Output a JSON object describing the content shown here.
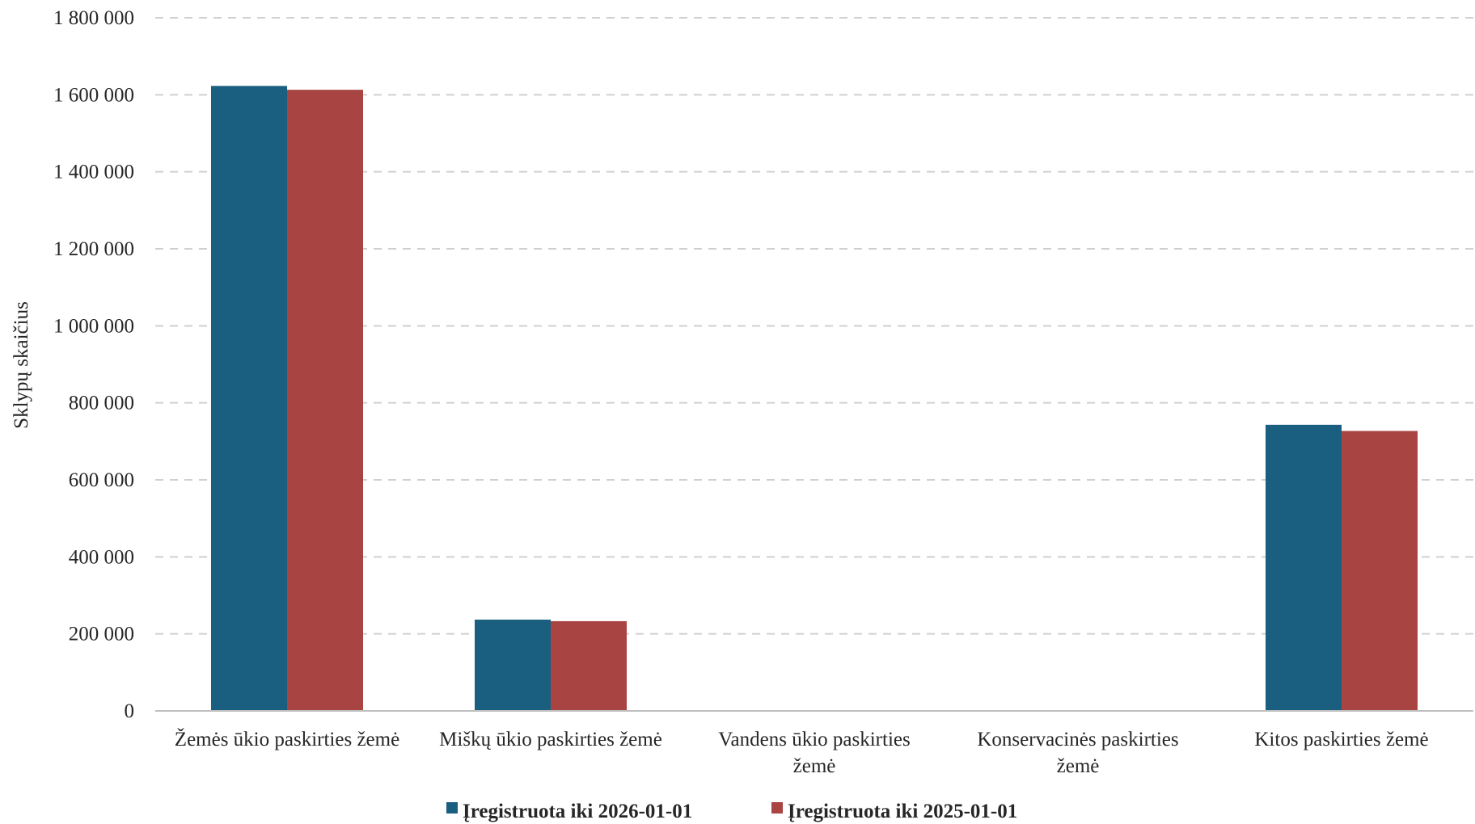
{
  "chart_data": {
    "type": "bar",
    "ylabel": "Sklypų skaičius",
    "xlabel": "",
    "ylim": [
      0,
      1800000
    ],
    "y_ticks": [
      0,
      200000,
      400000,
      600000,
      800000,
      1000000,
      1200000,
      1400000,
      1600000,
      1800000
    ],
    "y_tick_labels": [
      "0",
      "200 000",
      "400 000",
      "600 000",
      "800 000",
      "1 000 000",
      "1 200 000",
      "1 400 000",
      "1 600 000",
      "1 800 000"
    ],
    "grid": "horizontal dashed",
    "legend_position": "bottom",
    "categories": [
      [
        "Žemės ūkio paskirties žemė"
      ],
      [
        "Miškų ūkio paskirties žemė"
      ],
      [
        "Vandens ūkio paskirties",
        "žemė"
      ],
      [
        "Konservacinės paskirties",
        "žemė"
      ],
      [
        "Kitos paskirties žemė"
      ]
    ],
    "series": [
      {
        "name": "Įregistruota iki 2026-01-01",
        "color": "#1a5e80",
        "values": [
          1623000,
          237000,
          0,
          0,
          743000
        ]
      },
      {
        "name": "Įregistruota iki 2025-01-01",
        "color": "#a84442",
        "values": [
          1613000,
          233000,
          0,
          0,
          727000
        ]
      }
    ]
  }
}
